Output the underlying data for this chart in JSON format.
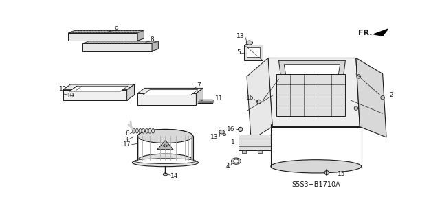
{
  "background_color": "#ffffff",
  "line_color": "#1a1a1a",
  "label_color": "#1a1a1a",
  "figsize": [
    6.4,
    3.19
  ],
  "dpi": 100,
  "diagram_ref": "S5S3−B1710A",
  "fr_label": "FR."
}
